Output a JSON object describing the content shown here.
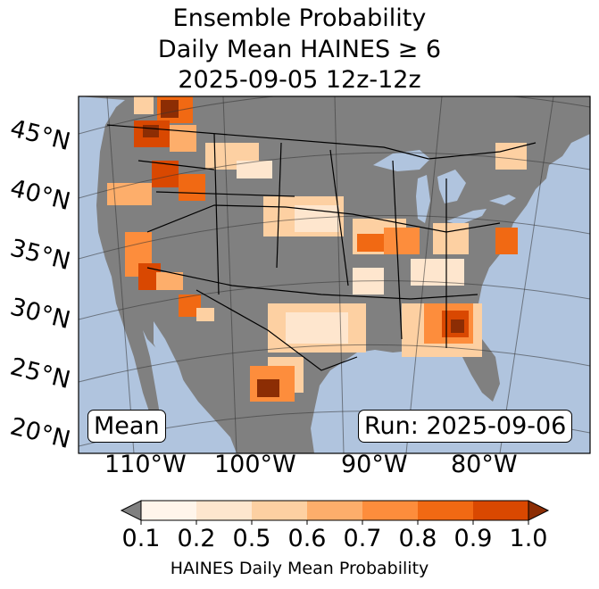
{
  "title": {
    "line1": "Ensemble Probability",
    "line2": "Daily Mean HAINES ≥ 6",
    "line3": "2025-09-05 12z-12z"
  },
  "map": {
    "latitude_labels": [
      "45°N",
      "40°N",
      "35°N",
      "30°N",
      "25°N",
      "20°N"
    ],
    "longitude_labels": [
      "110°W",
      "100°W",
      "90°W",
      "80°W"
    ],
    "stat_label": "Mean",
    "run_label": "Run: 2025-09-06",
    "colors": {
      "ocean": "#b0c4de",
      "land": "#808080"
    }
  },
  "colorbar": {
    "label": "HAINES Daily Mean Probability",
    "ticks": [
      "0.1",
      "0.2",
      "0.5",
      "0.6",
      "0.7",
      "0.8",
      "0.9",
      "1.0"
    ],
    "under_color": "#808080",
    "colors": [
      "#fff5eb",
      "#fee6ce",
      "#fdd0a2",
      "#fdae6b",
      "#fd8d3c",
      "#f16913",
      "#d94801",
      "#8c2d04"
    ]
  }
}
